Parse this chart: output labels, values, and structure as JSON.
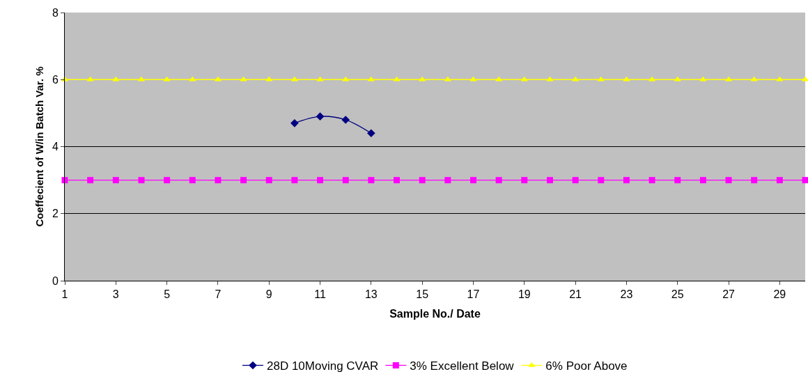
{
  "chart_data": {
    "type": "line",
    "xlabel": "Sample No./ Date",
    "ylabel": "Coeffecient of W/in Batch Var. %",
    "xlim": [
      1,
      30
    ],
    "xticks": [
      1,
      3,
      5,
      7,
      9,
      11,
      13,
      15,
      17,
      19,
      21,
      23,
      25,
      27,
      29
    ],
    "ylim": [
      0,
      8
    ],
    "yticks": [
      0,
      2,
      4,
      6,
      8
    ],
    "grid": "y",
    "legend": "bottom",
    "line_style": "solid",
    "series": [
      {
        "name": "28D 10Moving CVAR",
        "color": "#000080",
        "marker": "diamond",
        "x": [
          10,
          11,
          12,
          13
        ],
        "values": [
          4.7,
          4.9,
          4.8,
          4.4
        ]
      },
      {
        "name": "3% Excellent Below",
        "color": "#ff00ff",
        "marker": "square",
        "x": [
          1,
          2,
          3,
          4,
          5,
          6,
          7,
          8,
          9,
          10,
          11,
          12,
          13,
          14,
          15,
          16,
          17,
          18,
          19,
          20,
          21,
          22,
          23,
          24,
          25,
          26,
          27,
          28,
          29,
          30
        ],
        "values": [
          3,
          3,
          3,
          3,
          3,
          3,
          3,
          3,
          3,
          3,
          3,
          3,
          3,
          3,
          3,
          3,
          3,
          3,
          3,
          3,
          3,
          3,
          3,
          3,
          3,
          3,
          3,
          3,
          3,
          3
        ]
      },
      {
        "name": "6% Poor Above",
        "color": "#ffff00",
        "marker": "triangle",
        "x": [
          1,
          2,
          3,
          4,
          5,
          6,
          7,
          8,
          9,
          10,
          11,
          12,
          13,
          14,
          15,
          16,
          17,
          18,
          19,
          20,
          21,
          22,
          23,
          24,
          25,
          26,
          27,
          28,
          29,
          30
        ],
        "values": [
          6,
          6,
          6,
          6,
          6,
          6,
          6,
          6,
          6,
          6,
          6,
          6,
          6,
          6,
          6,
          6,
          6,
          6,
          6,
          6,
          6,
          6,
          6,
          6,
          6,
          6,
          6,
          6,
          6,
          6
        ]
      }
    ]
  }
}
